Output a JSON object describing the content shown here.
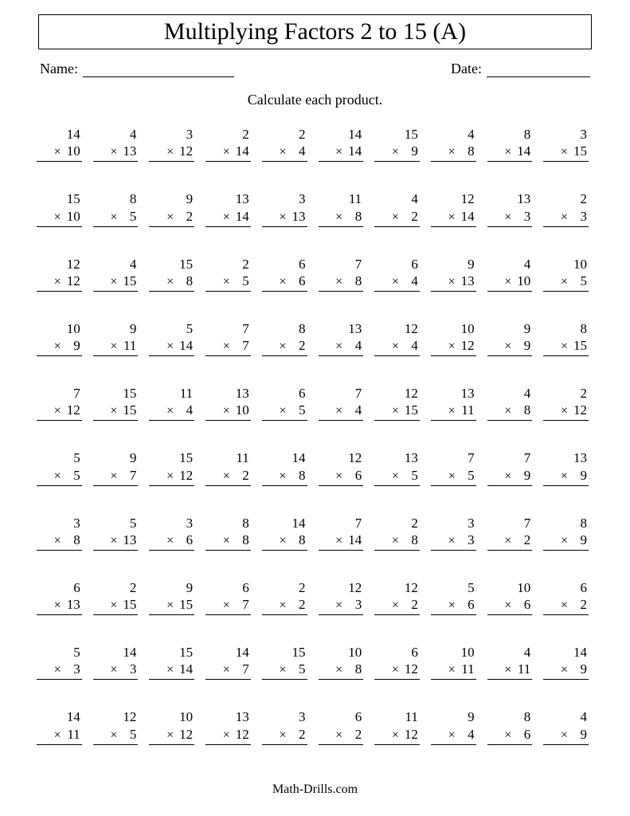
{
  "title": "Multiplying Factors 2 to 15 (A)",
  "name_label": "Name:",
  "date_label": "Date:",
  "instruction": "Calculate each product.",
  "footer": "Math-Drills.com",
  "columns": 10,
  "problem_fontsize": 17,
  "title_fontsize": 30,
  "colors": {
    "text": "#000000",
    "background": "#ffffff",
    "rule": "#000000"
  },
  "problems": [
    {
      "a": 14,
      "b": 10
    },
    {
      "a": 4,
      "b": 13
    },
    {
      "a": 3,
      "b": 12
    },
    {
      "a": 2,
      "b": 14
    },
    {
      "a": 2,
      "b": 4
    },
    {
      "a": 14,
      "b": 14
    },
    {
      "a": 15,
      "b": 9
    },
    {
      "a": 4,
      "b": 8
    },
    {
      "a": 8,
      "b": 14
    },
    {
      "a": 3,
      "b": 15
    },
    {
      "a": 15,
      "b": 10
    },
    {
      "a": 8,
      "b": 5
    },
    {
      "a": 9,
      "b": 2
    },
    {
      "a": 13,
      "b": 14
    },
    {
      "a": 3,
      "b": 13
    },
    {
      "a": 11,
      "b": 8
    },
    {
      "a": 4,
      "b": 2
    },
    {
      "a": 12,
      "b": 14
    },
    {
      "a": 13,
      "b": 3
    },
    {
      "a": 2,
      "b": 3
    },
    {
      "a": 12,
      "b": 12
    },
    {
      "a": 4,
      "b": 15
    },
    {
      "a": 15,
      "b": 8
    },
    {
      "a": 2,
      "b": 5
    },
    {
      "a": 6,
      "b": 6
    },
    {
      "a": 7,
      "b": 8
    },
    {
      "a": 6,
      "b": 4
    },
    {
      "a": 9,
      "b": 13
    },
    {
      "a": 4,
      "b": 10
    },
    {
      "a": 10,
      "b": 5
    },
    {
      "a": 10,
      "b": 9
    },
    {
      "a": 9,
      "b": 11
    },
    {
      "a": 5,
      "b": 14
    },
    {
      "a": 7,
      "b": 7
    },
    {
      "a": 8,
      "b": 2
    },
    {
      "a": 13,
      "b": 4
    },
    {
      "a": 12,
      "b": 4
    },
    {
      "a": 10,
      "b": 12
    },
    {
      "a": 9,
      "b": 9
    },
    {
      "a": 8,
      "b": 15
    },
    {
      "a": 7,
      "b": 12
    },
    {
      "a": 15,
      "b": 15
    },
    {
      "a": 11,
      "b": 4
    },
    {
      "a": 13,
      "b": 10
    },
    {
      "a": 6,
      "b": 5
    },
    {
      "a": 7,
      "b": 4
    },
    {
      "a": 12,
      "b": 15
    },
    {
      "a": 13,
      "b": 11
    },
    {
      "a": 4,
      "b": 8
    },
    {
      "a": 2,
      "b": 12
    },
    {
      "a": 5,
      "b": 5
    },
    {
      "a": 9,
      "b": 7
    },
    {
      "a": 15,
      "b": 12
    },
    {
      "a": 11,
      "b": 2
    },
    {
      "a": 14,
      "b": 8
    },
    {
      "a": 12,
      "b": 6
    },
    {
      "a": 13,
      "b": 5
    },
    {
      "a": 7,
      "b": 5
    },
    {
      "a": 7,
      "b": 9
    },
    {
      "a": 13,
      "b": 9
    },
    {
      "a": 3,
      "b": 8
    },
    {
      "a": 5,
      "b": 13
    },
    {
      "a": 3,
      "b": 6
    },
    {
      "a": 8,
      "b": 8
    },
    {
      "a": 14,
      "b": 8
    },
    {
      "a": 7,
      "b": 14
    },
    {
      "a": 2,
      "b": 8
    },
    {
      "a": 3,
      "b": 3
    },
    {
      "a": 7,
      "b": 2
    },
    {
      "a": 8,
      "b": 9
    },
    {
      "a": 6,
      "b": 13
    },
    {
      "a": 2,
      "b": 15
    },
    {
      "a": 9,
      "b": 15
    },
    {
      "a": 6,
      "b": 7
    },
    {
      "a": 2,
      "b": 2
    },
    {
      "a": 12,
      "b": 3
    },
    {
      "a": 12,
      "b": 2
    },
    {
      "a": 5,
      "b": 6
    },
    {
      "a": 10,
      "b": 6
    },
    {
      "a": 6,
      "b": 2
    },
    {
      "a": 5,
      "b": 3
    },
    {
      "a": 14,
      "b": 3
    },
    {
      "a": 15,
      "b": 14
    },
    {
      "a": 14,
      "b": 7
    },
    {
      "a": 15,
      "b": 5
    },
    {
      "a": 10,
      "b": 8
    },
    {
      "a": 6,
      "b": 12
    },
    {
      "a": 10,
      "b": 11
    },
    {
      "a": 4,
      "b": 11
    },
    {
      "a": 14,
      "b": 9
    },
    {
      "a": 14,
      "b": 11
    },
    {
      "a": 12,
      "b": 5
    },
    {
      "a": 10,
      "b": 12
    },
    {
      "a": 13,
      "b": 12
    },
    {
      "a": 3,
      "b": 2
    },
    {
      "a": 6,
      "b": 2
    },
    {
      "a": 11,
      "b": 12
    },
    {
      "a": 9,
      "b": 4
    },
    {
      "a": 8,
      "b": 6
    },
    {
      "a": 4,
      "b": 9
    }
  ]
}
